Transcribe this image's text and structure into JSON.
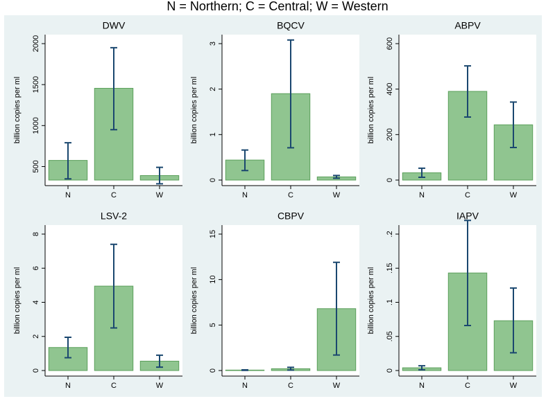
{
  "title": "N = Northern; C = Central; W = Western",
  "chart_data": [
    {
      "type": "bar",
      "title": "DWV",
      "ylabel": "billion copies per ml",
      "categories": [
        "N",
        "C",
        "W"
      ],
      "values": [
        575,
        1455,
        390
      ],
      "lower": [
        350,
        950,
        290
      ],
      "upper": [
        790,
        1950,
        490
      ],
      "ylim": [
        335,
        2000
      ],
      "yticks": [
        500,
        1000,
        1500,
        2000
      ],
      "color": "#90c590",
      "error_color": "#1a476f"
    },
    {
      "type": "bar",
      "title": "BQCV",
      "ylabel": "billion copies per ml",
      "categories": [
        "N",
        "C",
        "W"
      ],
      "values": [
        0.44,
        1.9,
        0.07
      ],
      "lower": [
        0.21,
        0.71,
        0.04
      ],
      "upper": [
        0.66,
        3.08,
        0.1
      ],
      "ylim": [
        0,
        3
      ],
      "yticks": [
        0,
        1,
        2,
        3
      ],
      "color": "#90c590",
      "error_color": "#1a476f"
    },
    {
      "type": "bar",
      "title": "ABPV",
      "ylabel": "billion copies per ml",
      "categories": [
        "N",
        "C",
        "W"
      ],
      "values": [
        32,
        390,
        243
      ],
      "lower": [
        12,
        277,
        143
      ],
      "upper": [
        52,
        502,
        343
      ],
      "ylim": [
        0,
        600
      ],
      "yticks": [
        0,
        200,
        400,
        600
      ],
      "color": "#90c590",
      "error_color": "#1a476f"
    },
    {
      "type": "bar",
      "title": "LSV-2",
      "ylabel": "billion copies per ml",
      "categories": [
        "N",
        "C",
        "W"
      ],
      "values": [
        1.35,
        4.95,
        0.55
      ],
      "lower": [
        0.75,
        2.5,
        0.2
      ],
      "upper": [
        1.95,
        7.4,
        0.9
      ],
      "ylim": [
        0,
        8
      ],
      "yticks": [
        0,
        2,
        4,
        6,
        8
      ],
      "color": "#90c590",
      "error_color": "#1a476f"
    },
    {
      "type": "bar",
      "title": "CBPV",
      "ylabel": "billion copies per ml",
      "categories": [
        "N",
        "C",
        "W"
      ],
      "values": [
        0.05,
        0.2,
        6.8
      ],
      "lower": [
        0.02,
        0.05,
        1.7
      ],
      "upper": [
        0.08,
        0.35,
        11.9
      ],
      "ylim": [
        0,
        15
      ],
      "yticks": [
        0,
        5,
        10,
        15
      ],
      "color": "#90c590",
      "error_color": "#1a476f"
    },
    {
      "type": "bar",
      "title": "IAPV",
      "ylabel": "billion copies per ml",
      "categories": [
        "N",
        "C",
        "W"
      ],
      "values": [
        0.004,
        0.143,
        0.073
      ],
      "lower": [
        0.001,
        0.066,
        0.026
      ],
      "upper": [
        0.007,
        0.22,
        0.121
      ],
      "ylim": [
        0,
        0.2
      ],
      "yticks": [
        0,
        {
          "value": 0.05,
          "label": ".05"
        },
        {
          "value": 0.1,
          "label": ".1"
        },
        {
          "value": 0.15,
          "label": ".15"
        },
        {
          "value": 0.2,
          "label": ".2"
        }
      ],
      "color": "#90c590",
      "error_color": "#1a476f"
    }
  ]
}
